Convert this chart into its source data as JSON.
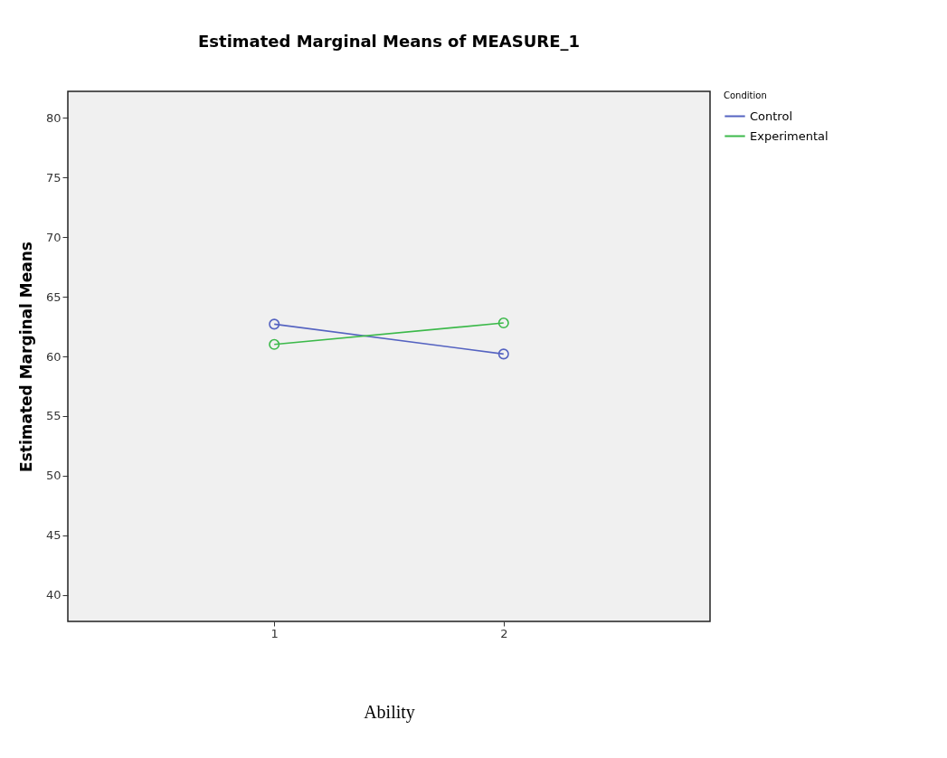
{
  "chart_data": {
    "type": "line",
    "title": "Estimated Marginal Means of MEASURE_1",
    "xlabel": "Ability",
    "ylabel": "Estimated Marginal Means",
    "legend_title": "Condition",
    "categories": [
      "1",
      "2"
    ],
    "series": [
      {
        "name": "Control",
        "color": "#5563c1",
        "values": [
          62.7,
          60.2
        ]
      },
      {
        "name": "Experimental",
        "color": "#3cb94a",
        "values": [
          61.0,
          62.8
        ]
      }
    ],
    "ylim": [
      37.8,
      82.2
    ],
    "yticks": [
      40,
      45,
      50,
      55,
      60,
      65,
      70,
      75,
      80
    ],
    "grid": false,
    "legend": "top right",
    "marker": "circle",
    "line_style": "solid"
  }
}
